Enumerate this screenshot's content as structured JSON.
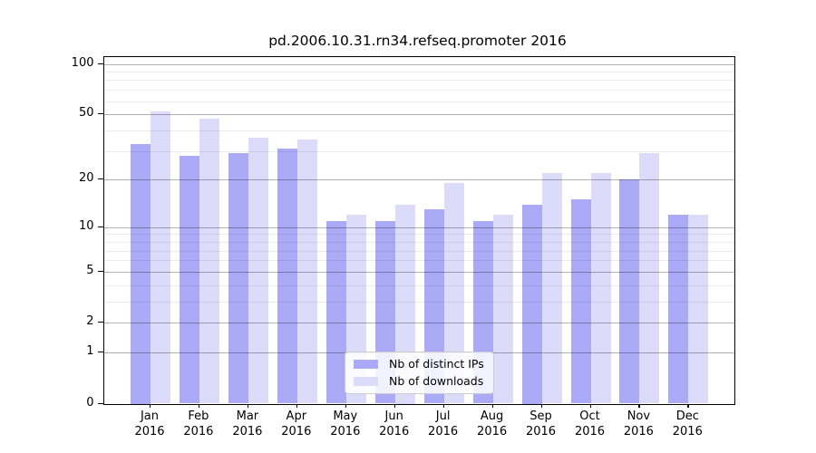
{
  "title": "pd.2006.10.31.rn34.refseq.promoter 2016",
  "chart_data": {
    "type": "bar",
    "title": "pd.2006.10.31.rn34.refseq.promoter 2016",
    "yscale": "log1p",
    "categories": [
      "Jan",
      "Feb",
      "Mar",
      "Apr",
      "May",
      "Jun",
      "Jul",
      "Aug",
      "Sep",
      "Oct",
      "Nov",
      "Dec"
    ],
    "year_label": "2016",
    "series": [
      {
        "name": "Nb of distinct IPs",
        "color": "#aaaaf7",
        "values": [
          33,
          28,
          29,
          31,
          11,
          11,
          13,
          11,
          14,
          15,
          20,
          12
        ]
      },
      {
        "name": "Nb of downloads",
        "color": "#dcdcfa",
        "values": [
          52,
          47,
          36,
          35,
          12,
          14,
          19,
          12,
          22,
          22,
          29,
          12
        ]
      }
    ],
    "yticks": [
      0,
      1,
      2,
      5,
      10,
      20,
      50,
      100
    ],
    "minor_yticks": [
      3,
      4,
      6,
      7,
      8,
      9,
      30,
      40,
      60,
      70,
      80,
      90
    ],
    "ylim": [
      0,
      111
    ],
    "xlabel": "",
    "ylabel": "",
    "grid": "on",
    "grid_major_color": "rgba(0,0,0,0.30)",
    "grid_minor_color": "rgba(0,0,0,0.08)",
    "legend_position": "bottom-center"
  }
}
